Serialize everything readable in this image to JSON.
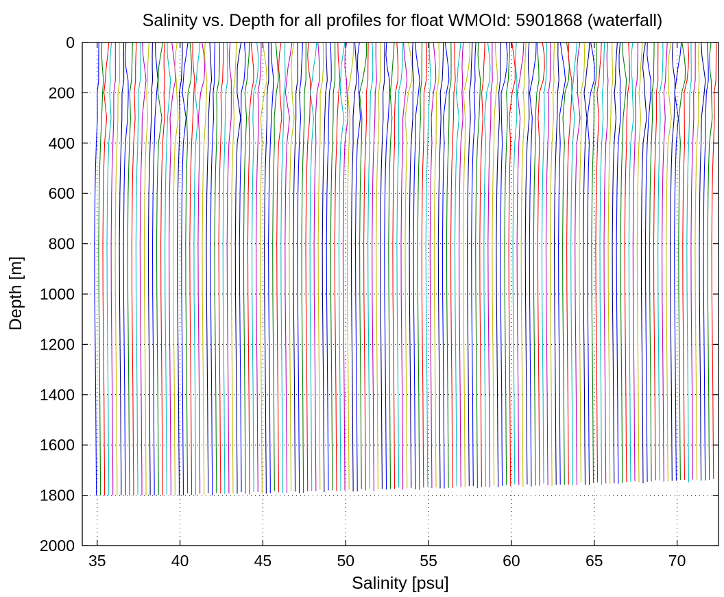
{
  "chart_data": {
    "type": "line",
    "title": "Salinity vs. Depth for all profiles for float WMOId: 5901868 (waterfall)",
    "xlabel": "Salinity [psu]",
    "ylabel": "Depth [m]",
    "xlim": [
      34.1,
      72.5
    ],
    "ylim": [
      0,
      2000
    ],
    "y_reversed": true,
    "grid": "dotted",
    "x_ticks": [
      35,
      40,
      45,
      50,
      55,
      60,
      65,
      70
    ],
    "y_ticks": [
      0,
      200,
      400,
      600,
      800,
      1000,
      1200,
      1400,
      1600,
      1800,
      2000
    ],
    "waterfall_offset_psu": 0.25,
    "profile_count": 150,
    "color_cycle": [
      "#0000ff",
      "#008000",
      "#ff0000",
      "#00bfbf",
      "#bf00bf",
      "#bfbf00",
      "#000080"
    ],
    "base_profile": {
      "depth": [
        0,
        50,
        100,
        150,
        200,
        300,
        400,
        500,
        600,
        800,
        1000,
        1200,
        1400,
        1600,
        1750,
        1800
      ],
      "salinity": [
        35.1,
        35.1,
        35.1,
        35.1,
        35.0,
        35.0,
        34.95,
        34.9,
        34.87,
        34.84,
        34.85,
        34.88,
        34.91,
        34.93,
        34.95,
        34.95
      ]
    }
  }
}
